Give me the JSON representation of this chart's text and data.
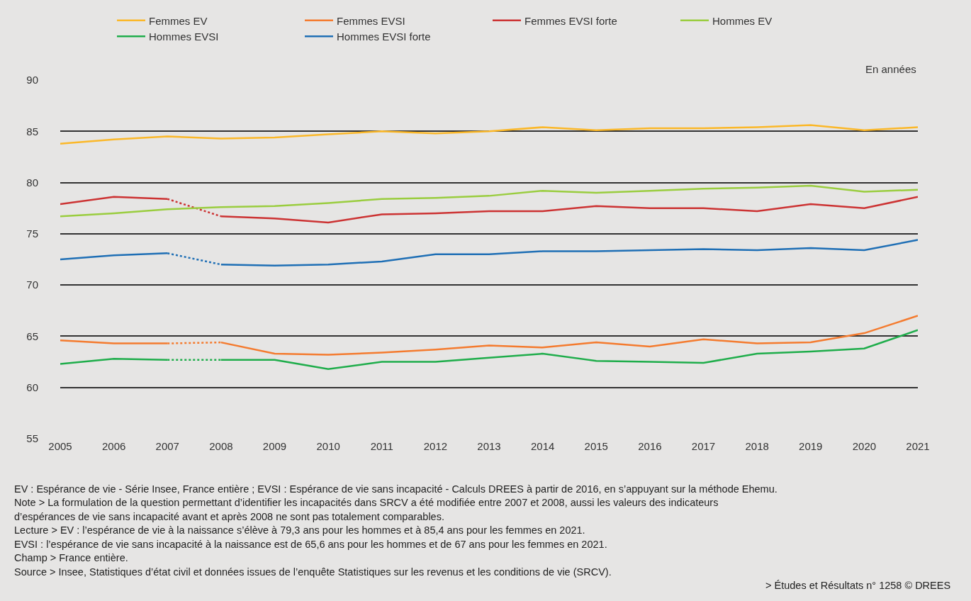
{
  "chart_data": {
    "type": "line",
    "ylabel": "En années",
    "x": [
      2005,
      2006,
      2007,
      2008,
      2009,
      2010,
      2011,
      2012,
      2013,
      2014,
      2015,
      2016,
      2017,
      2018,
      2019,
      2020,
      2021
    ],
    "series": [
      {
        "name": "Femmes EV",
        "color": "#fbb829",
        "values": [
          83.8,
          84.2,
          84.5,
          84.3,
          84.4,
          84.7,
          85.0,
          84.8,
          85.0,
          85.4,
          85.1,
          85.3,
          85.3,
          85.4,
          85.6,
          85.1,
          85.4
        ]
      },
      {
        "name": "Femmes EVSI",
        "color": "#f47b2f",
        "values": [
          64.6,
          64.3,
          64.3,
          null,
          null,
          null,
          null,
          null,
          null,
          null,
          null,
          null,
          null,
          null,
          null,
          null,
          null
        ]
      },
      {
        "color": "#f47b2f",
        "line_style": "dotted",
        "values": [
          null,
          null,
          64.3,
          64.4,
          null,
          null,
          null,
          null,
          null,
          null,
          null,
          null,
          null,
          null,
          null,
          null,
          null
        ]
      },
      {
        "color": "#f47b2f",
        "values": [
          null,
          null,
          null,
          64.4,
          63.3,
          63.2,
          63.4,
          63.7,
          64.1,
          63.9,
          64.4,
          64.0,
          64.7,
          64.3,
          64.4,
          65.3,
          67
        ]
      },
      {
        "name": "Femmes EVSI forte",
        "color": "#cc3333",
        "values": [
          77.9,
          78.6,
          78.4,
          null,
          null,
          null,
          null,
          null,
          null,
          null,
          null,
          null,
          null,
          null,
          null,
          null,
          null
        ]
      },
      {
        "color": "#cc3333",
        "line_style": "dotted",
        "values": [
          null,
          null,
          78.4,
          76.7,
          null,
          null,
          null,
          null,
          null,
          null,
          null,
          null,
          null,
          null,
          null,
          null,
          null
        ]
      },
      {
        "color": "#cc3333",
        "values": [
          null,
          null,
          null,
          76.7,
          76.5,
          76.1,
          76.9,
          77.0,
          77.2,
          77.2,
          77.7,
          77.5,
          77.5,
          77.2,
          77.9,
          77.5,
          78.6
        ]
      },
      {
        "name": "Hommes EV",
        "color": "#9acd3f",
        "values": [
          76.7,
          77.0,
          77.4,
          77.6,
          77.7,
          78.0,
          78.4,
          78.5,
          78.7,
          79.2,
          79.0,
          79.2,
          79.4,
          79.5,
          79.7,
          79.1,
          79.3
        ]
      },
      {
        "name": "Hommes EVSI",
        "color": "#1fad4b",
        "values": [
          62.3,
          62.8,
          62.7,
          null,
          null,
          null,
          null,
          null,
          null,
          null,
          null,
          null,
          null,
          null,
          null,
          null,
          null
        ]
      },
      {
        "color": "#1fad4b",
        "line_style": "dotted",
        "values": [
          null,
          null,
          62.7,
          62.7,
          null,
          null,
          null,
          null,
          null,
          null,
          null,
          null,
          null,
          null,
          null,
          null,
          null
        ]
      },
      {
        "color": "#1fad4b",
        "values": [
          null,
          null,
          null,
          62.7,
          62.7,
          61.8,
          62.5,
          62.5,
          62.9,
          63.3,
          62.6,
          62.5,
          62.4,
          63.3,
          63.5,
          63.8,
          65.6
        ]
      },
      {
        "name": "Hommes EVSI forte",
        "color": "#1f6fb5",
        "values": [
          72.5,
          72.9,
          73.1,
          null,
          null,
          null,
          null,
          null,
          null,
          null,
          null,
          null,
          null,
          null,
          null,
          null,
          null
        ]
      },
      {
        "color": "#1f6fb5",
        "line_style": "dotted",
        "values": [
          null,
          null,
          73.1,
          72.0,
          null,
          null,
          null,
          null,
          null,
          null,
          null,
          null,
          null,
          null,
          null,
          null,
          null
        ]
      },
      {
        "color": "#1f6fb5",
        "values": [
          null,
          null,
          null,
          72.0,
          71.9,
          72.0,
          72.3,
          73.0,
          73.0,
          73.3,
          73.3,
          73.4,
          73.5,
          73.4,
          73.6,
          73.4,
          74.4
        ]
      }
    ],
    "xlim": [
      2005,
      2021
    ],
    "xticks": [
      2005,
      2006,
      2007,
      2008,
      2009,
      2010,
      2011,
      2012,
      2013,
      2014,
      2015,
      2016,
      2017,
      2018,
      2019,
      2020,
      2021
    ],
    "ylim": [
      55,
      90
    ],
    "yticks": [
      55,
      60,
      65,
      70,
      75,
      80,
      85,
      90
    ],
    "grid": "y",
    "legend": "top",
    "line_style": "solid",
    "marker": "none",
    "annotations": [
      "EV : Espérance de vie - Série Insee, France entière ; EVSI : Espérance de vie sans incapacité - Calculs DREES à partir de 2016, en s’appuyant sur la méthode Ehemu.",
      "Note > La formulation de la question permettant d’identifier les incapacités dans SRCV a été modifiée entre 2007 et 2008, aussi les valeurs des indicateurs",
      "d’espérances de vie sans incapacité avant et après 2008 ne sont pas totalement comparables.",
      "Lecture > EV : l’espérance de vie à la naissance s’élève à 79,3 ans pour les hommes et à 85,4 ans pour les femmes en 2021.",
      "EVSI : l’espérance de vie sans incapacité à la naissance est de 65,6 ans pour les hommes et de 67 ans pour les femmes en 2021.",
      "Champ > France entière.",
      "Source > Insee, Statistiques d’état civil et données issues de l’enquête Statistiques sur les revenus et les conditions de vie (SRCV).",
      "> Études et Résultats n° 1258 © DREES"
    ]
  }
}
